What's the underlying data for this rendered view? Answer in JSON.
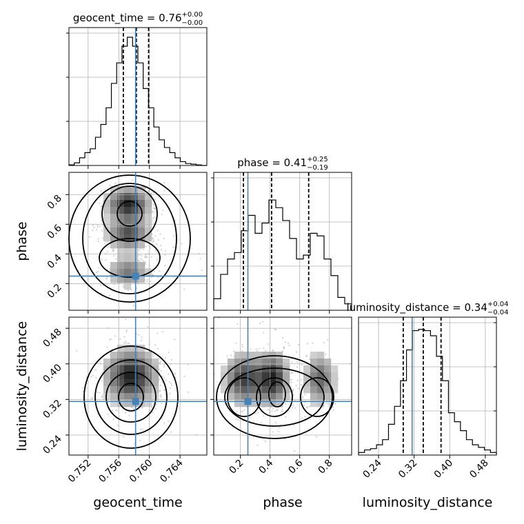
{
  "chart_data": {
    "type": "corner",
    "parameters": [
      {
        "name": "geocent_time",
        "xlabel": "geocent_time",
        "range": [
          0.7495,
          0.7675
        ],
        "ticks": [
          0.752,
          0.756,
          0.76,
          0.764
        ],
        "tick_labels": [
          "0.752",
          "0.756",
          "0.760",
          "0.764"
        ],
        "title_main": "geocent_time = 0.76",
        "title_sup": "+0.00",
        "title_sub": "−0.00",
        "quantiles": [
          0.7566,
          0.7583,
          0.7599
        ],
        "truth": 0.7582,
        "hist": [
          0.005,
          0.02,
          0.06,
          0.1,
          0.13,
          0.22,
          0.32,
          0.45,
          0.64,
          0.8,
          0.93,
          1.0,
          0.93,
          0.8,
          0.6,
          0.45,
          0.3,
          0.2,
          0.14,
          0.1,
          0.06,
          0.03,
          0.015,
          0.01,
          0.004,
          0.0
        ]
      },
      {
        "name": "phase",
        "xlabel": "phase",
        "ylabel": "phase",
        "range": [
          0.02,
          0.95
        ],
        "ticks": [
          0.2,
          0.4,
          0.6,
          0.8
        ],
        "tick_labels": [
          "0.2",
          "0.4",
          "0.6",
          "0.8"
        ],
        "title_main": "phase = 0.41",
        "title_sup": "+0.25",
        "title_sub": "−0.19",
        "quantiles": [
          0.2203,
          0.4103,
          0.6603
        ],
        "truth": 0.2503,
        "hist": [
          0.09,
          0.28,
          0.4,
          0.45,
          0.62,
          0.74,
          0.6,
          0.68,
          0.86,
          0.8,
          0.7,
          0.56,
          0.4,
          0.43,
          0.6,
          0.58,
          0.4,
          0.27,
          0.1,
          0.05
        ]
      },
      {
        "name": "luminosity_distance",
        "xlabel": "luminosity_distance",
        "ylabel": "luminosity_distance",
        "range": [
          0.195,
          0.505
        ],
        "ticks": [
          0.24,
          0.32,
          0.4,
          0.48
        ],
        "tick_labels": [
          "0.24",
          "0.32",
          "0.40",
          "0.48"
        ],
        "title_main": "luminosity_distance = 0.34",
        "title_sup": "+0.04",
        "title_sub": "−0.04",
        "quantiles": [
          0.2955,
          0.3405,
          0.3805
        ],
        "truth": 0.3155,
        "hist": [
          0.02,
          0.04,
          0.05,
          0.08,
          0.12,
          0.24,
          0.38,
          0.58,
          0.82,
          0.97,
          0.98,
          0.97,
          0.93,
          0.77,
          0.58,
          0.33,
          0.26,
          0.19,
          0.12,
          0.08,
          0.06,
          0.04,
          0.02
        ]
      }
    ],
    "truth_color": "#4682b4",
    "line_color": "#000000",
    "grid": true,
    "axis_labels": {
      "geocent_time": "geocent_time",
      "phase": "phase",
      "luminosity_distance": "luminosity_distance"
    }
  }
}
